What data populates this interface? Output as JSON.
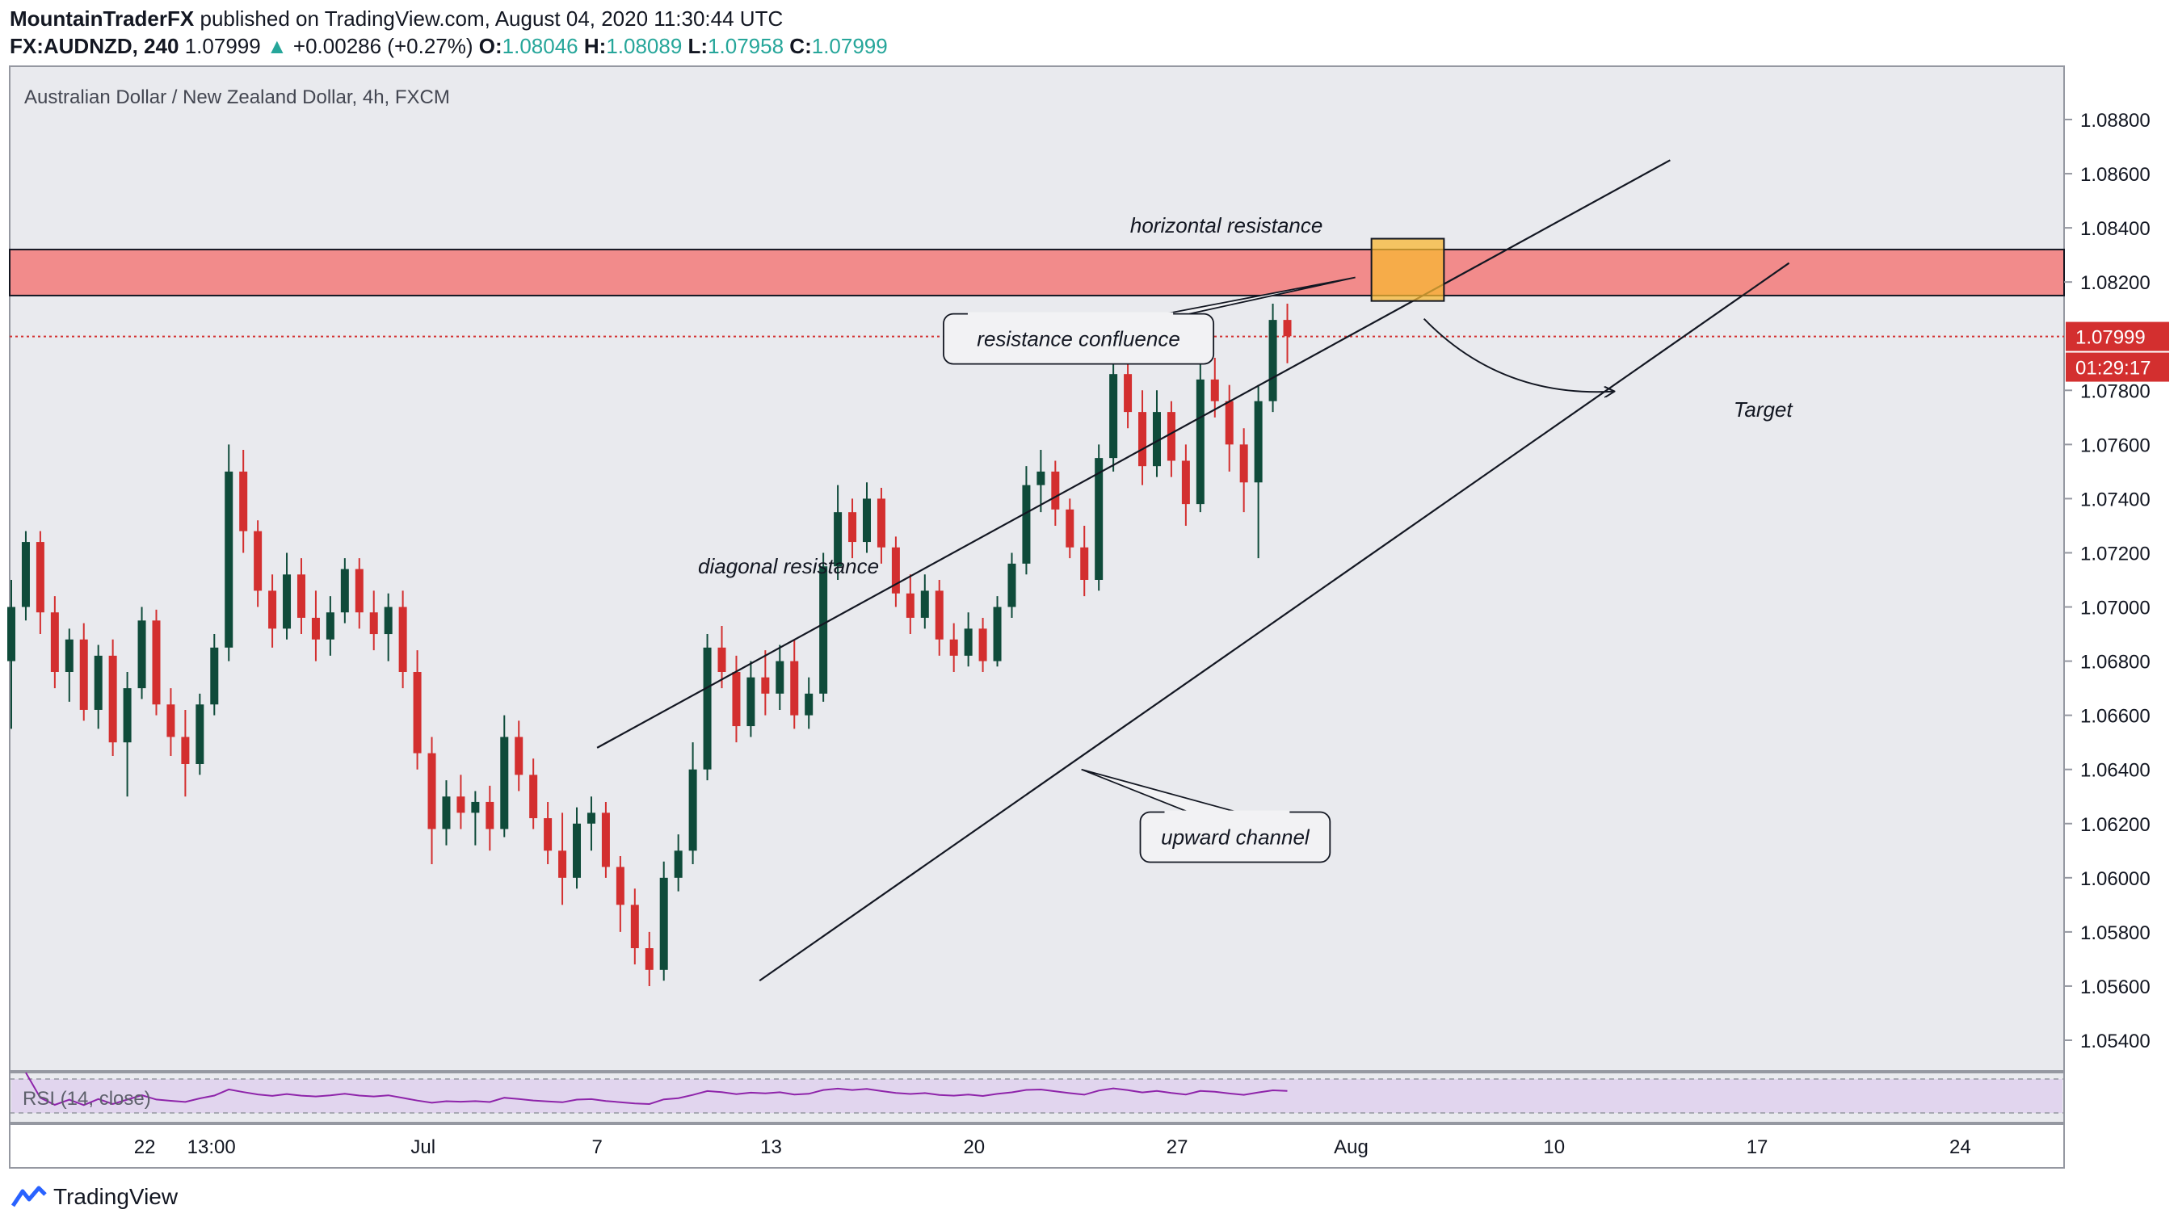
{
  "header": {
    "author": "MountainTraderFX",
    "published": "published on TradingView.com, August 04, 2020 11:30:44 UTC",
    "symbol": "FX:AUDNZD, 240",
    "last": "1.07999",
    "change_arrow": "▲",
    "change": "+0.00286 (+0.27%)",
    "o_label": "O:",
    "o_value": "1.08046",
    "h_label": "H:",
    "h_value": "1.08089",
    "l_label": "L:",
    "l_value": "1.07958",
    "c_label": "C:",
    "c_value": "1.07999"
  },
  "chart_data": {
    "type": "candlestick",
    "title": "Australian Dollar / New Zealand Dollar, 4h, FXCM",
    "ylim": [
      1.053,
      1.09
    ],
    "y_ticks": [
      "1.08800",
      "1.08600",
      "1.08400",
      "1.08200",
      "1.07800",
      "1.07600",
      "1.07400",
      "1.07200",
      "1.07000",
      "1.06800",
      "1.06600",
      "1.06400",
      "1.06200",
      "1.06000",
      "1.05800",
      "1.05600",
      "1.05400"
    ],
    "y_tick_values": [
      1.088,
      1.086,
      1.084,
      1.082,
      1.078,
      1.076,
      1.074,
      1.072,
      1.07,
      1.068,
      1.066,
      1.064,
      1.062,
      1.06,
      1.058,
      1.056,
      1.054
    ],
    "x_ticks": [
      "22",
      "13:00",
      "Jul",
      "7",
      "13",
      "20",
      "27",
      "Aug",
      "10",
      "17",
      "24"
    ],
    "x_tick_days": [
      -8.8,
      -6.5,
      0.8,
      6.8,
      12.8,
      19.8,
      26.8,
      32.8,
      39.8,
      46.8,
      53.8
    ],
    "x_range_days": [
      -13.4,
      57.3
    ],
    "last_price": "1.07999",
    "last_price_value": 1.07999,
    "countdown": "01:29:17",
    "colors": {
      "up": "#0f4b3a",
      "down": "#d32f2f",
      "zone": "#f28b8b",
      "confluence": "#f7b733",
      "rsi": "#8e24aa",
      "rsi_band": "#e1d5ee",
      "bg": "#e9eaee"
    },
    "resistance_zone": {
      "low": 1.0815,
      "high": 1.0832
    },
    "confluence_box": {
      "day_start": 33.5,
      "day_end": 36.0,
      "low": 1.0813,
      "high": 1.0836
    },
    "diagonal_resistance_line": [
      [
        6.8,
        1.0648
      ],
      [
        43.8,
        1.0865
      ]
    ],
    "channel_support_line": [
      [
        12.4,
        1.0562
      ],
      [
        47.9,
        1.0827
      ]
    ],
    "annotations": [
      {
        "text": "horizontal resistance",
        "day": 28.5,
        "price": 1.0841
      },
      {
        "text": "resistance confluence",
        "day": 23.4,
        "price": 1.0799,
        "boxed": true
      },
      {
        "text": "diagonal resistance",
        "day": 13.4,
        "price": 1.0715
      },
      {
        "text": "upward channel",
        "day": 28.8,
        "price": 1.0615,
        "boxed": true
      },
      {
        "text": "Target",
        "day": 47.0,
        "price": 1.0773
      }
    ],
    "candles": [
      [
        -13.4,
        1.068,
        1.071,
        1.0655,
        1.07
      ],
      [
        -12.9,
        1.07,
        1.0728,
        1.0695,
        1.0724
      ],
      [
        -12.4,
        1.0724,
        1.0728,
        1.069,
        1.0698
      ],
      [
        -11.9,
        1.0698,
        1.0704,
        1.067,
        1.0676
      ],
      [
        -11.4,
        1.0676,
        1.0692,
        1.0665,
        1.0688
      ],
      [
        -10.9,
        1.0688,
        1.0694,
        1.0658,
        1.0662
      ],
      [
        -10.4,
        1.0662,
        1.0686,
        1.0655,
        1.0682
      ],
      [
        -9.9,
        1.0682,
        1.0688,
        1.0645,
        1.065
      ],
      [
        -9.4,
        1.065,
        1.0676,
        1.063,
        1.067
      ],
      [
        -8.9,
        1.067,
        1.07,
        1.0666,
        1.0695
      ],
      [
        -8.4,
        1.0695,
        1.0699,
        1.066,
        1.0664
      ],
      [
        -7.9,
        1.0664,
        1.067,
        1.0645,
        1.0652
      ],
      [
        -7.4,
        1.0652,
        1.0662,
        1.063,
        1.0642
      ],
      [
        -6.9,
        1.0642,
        1.0668,
        1.0638,
        1.0664
      ],
      [
        -6.4,
        1.0664,
        1.069,
        1.066,
        1.0685
      ],
      [
        -5.9,
        1.0685,
        1.076,
        1.068,
        1.075
      ],
      [
        -5.4,
        1.075,
        1.0758,
        1.072,
        1.0728
      ],
      [
        -4.9,
        1.0728,
        1.0732,
        1.07,
        1.0706
      ],
      [
        -4.4,
        1.0706,
        1.0712,
        1.0685,
        1.0692
      ],
      [
        -3.9,
        1.0692,
        1.072,
        1.0688,
        1.0712
      ],
      [
        -3.4,
        1.0712,
        1.0718,
        1.069,
        1.0696
      ],
      [
        -2.9,
        1.0696,
        1.0706,
        1.068,
        1.0688
      ],
      [
        -2.4,
        1.0688,
        1.0704,
        1.0682,
        1.0698
      ],
      [
        -1.9,
        1.0698,
        1.0718,
        1.0694,
        1.0714
      ],
      [
        -1.4,
        1.0714,
        1.0718,
        1.0692,
        1.0698
      ],
      [
        -0.9,
        1.0698,
        1.0706,
        1.0684,
        1.069
      ],
      [
        -0.4,
        1.069,
        1.0705,
        1.068,
        1.07
      ],
      [
        0.1,
        1.07,
        1.0706,
        1.067,
        1.0676
      ],
      [
        0.6,
        1.0676,
        1.0684,
        1.064,
        1.0646
      ],
      [
        1.1,
        1.0646,
        1.0652,
        1.0605,
        1.0618
      ],
      [
        1.6,
        1.0618,
        1.0636,
        1.0612,
        1.063
      ],
      [
        2.1,
        1.063,
        1.0638,
        1.0618,
        1.0624
      ],
      [
        2.6,
        1.0624,
        1.0632,
        1.0612,
        1.0628
      ],
      [
        3.1,
        1.0628,
        1.0634,
        1.061,
        1.0618
      ],
      [
        3.6,
        1.0618,
        1.066,
        1.0615,
        1.0652
      ],
      [
        4.1,
        1.0652,
        1.0658,
        1.0632,
        1.0638
      ],
      [
        4.6,
        1.0638,
        1.0644,
        1.0618,
        1.0622
      ],
      [
        5.1,
        1.0622,
        1.0628,
        1.0605,
        1.061
      ],
      [
        5.6,
        1.061,
        1.0624,
        1.059,
        1.06
      ],
      [
        6.1,
        1.06,
        1.0626,
        1.0596,
        1.062
      ],
      [
        6.6,
        1.062,
        1.063,
        1.061,
        1.0624
      ],
      [
        7.1,
        1.0624,
        1.0628,
        1.06,
        1.0604
      ],
      [
        7.6,
        1.0604,
        1.0608,
        1.058,
        1.059
      ],
      [
        8.1,
        1.059,
        1.0596,
        1.0568,
        1.0574
      ],
      [
        8.6,
        1.0574,
        1.058,
        1.056,
        1.0566
      ],
      [
        9.1,
        1.0566,
        1.0606,
        1.0562,
        1.06
      ],
      [
        9.6,
        1.06,
        1.0616,
        1.0595,
        1.061
      ],
      [
        10.1,
        1.061,
        1.065,
        1.0605,
        1.064
      ],
      [
        10.6,
        1.064,
        1.069,
        1.0636,
        1.0685
      ],
      [
        11.1,
        1.0685,
        1.0693,
        1.067,
        1.0676
      ],
      [
        11.6,
        1.0676,
        1.0682,
        1.065,
        1.0656
      ],
      [
        12.1,
        1.0656,
        1.068,
        1.0652,
        1.0674
      ],
      [
        12.6,
        1.0674,
        1.0684,
        1.066,
        1.0668
      ],
      [
        13.1,
        1.0668,
        1.0686,
        1.0662,
        1.068
      ],
      [
        13.6,
        1.068,
        1.0688,
        1.0655,
        1.066
      ],
      [
        14.1,
        1.066,
        1.0674,
        1.0655,
        1.0668
      ],
      [
        14.6,
        1.0668,
        1.072,
        1.0665,
        1.0715
      ],
      [
        15.1,
        1.0715,
        1.0745,
        1.071,
        1.0735
      ],
      [
        15.6,
        1.0735,
        1.074,
        1.0718,
        1.0724
      ],
      [
        16.1,
        1.0724,
        1.0746,
        1.072,
        1.074
      ],
      [
        16.6,
        1.074,
        1.0744,
        1.0716,
        1.0722
      ],
      [
        17.1,
        1.0722,
        1.0726,
        1.07,
        1.0705
      ],
      [
        17.6,
        1.0705,
        1.0712,
        1.069,
        1.0696
      ],
      [
        18.1,
        1.0696,
        1.0712,
        1.0692,
        1.0706
      ],
      [
        18.6,
        1.0706,
        1.071,
        1.0682,
        1.0688
      ],
      [
        19.1,
        1.0688,
        1.0694,
        1.0676,
        1.0682
      ],
      [
        19.6,
        1.0682,
        1.0698,
        1.0678,
        1.0692
      ],
      [
        20.1,
        1.0692,
        1.0696,
        1.0676,
        1.068
      ],
      [
        20.6,
        1.068,
        1.0704,
        1.0678,
        1.07
      ],
      [
        21.1,
        1.07,
        1.072,
        1.0696,
        1.0716
      ],
      [
        21.6,
        1.0716,
        1.0752,
        1.0712,
        1.0745
      ],
      [
        22.1,
        1.0745,
        1.0758,
        1.0735,
        1.075
      ],
      [
        22.6,
        1.075,
        1.0754,
        1.073,
        1.0736
      ],
      [
        23.1,
        1.0736,
        1.074,
        1.0718,
        1.0722
      ],
      [
        23.6,
        1.0722,
        1.073,
        1.0704,
        1.071
      ],
      [
        24.1,
        1.071,
        1.076,
        1.0706,
        1.0755
      ],
      [
        24.6,
        1.0755,
        1.079,
        1.075,
        1.0786
      ],
      [
        25.1,
        1.0786,
        1.08,
        1.0766,
        1.0772
      ],
      [
        25.6,
        1.0772,
        1.078,
        1.0745,
        1.0752
      ],
      [
        26.1,
        1.0752,
        1.078,
        1.0748,
        1.0772
      ],
      [
        26.6,
        1.0772,
        1.0776,
        1.0748,
        1.0754
      ],
      [
        27.1,
        1.0754,
        1.076,
        1.073,
        1.0738
      ],
      [
        27.6,
        1.0738,
        1.079,
        1.0735,
        1.0784
      ],
      [
        28.1,
        1.0784,
        1.0792,
        1.077,
        1.0776
      ],
      [
        28.6,
        1.0776,
        1.0782,
        1.075,
        1.076
      ],
      [
        29.1,
        1.076,
        1.0766,
        1.0735,
        1.0746
      ],
      [
        29.6,
        1.0746,
        1.0782,
        1.0718,
        1.0776
      ],
      [
        30.1,
        1.0776,
        1.0812,
        1.0772,
        1.0806
      ],
      [
        30.6,
        1.0806,
        1.0812,
        1.079,
        1.08
      ]
    ],
    "rsi": {
      "label": "RSI (14, close)",
      "upper": 70,
      "lower": 30
    }
  }
}
